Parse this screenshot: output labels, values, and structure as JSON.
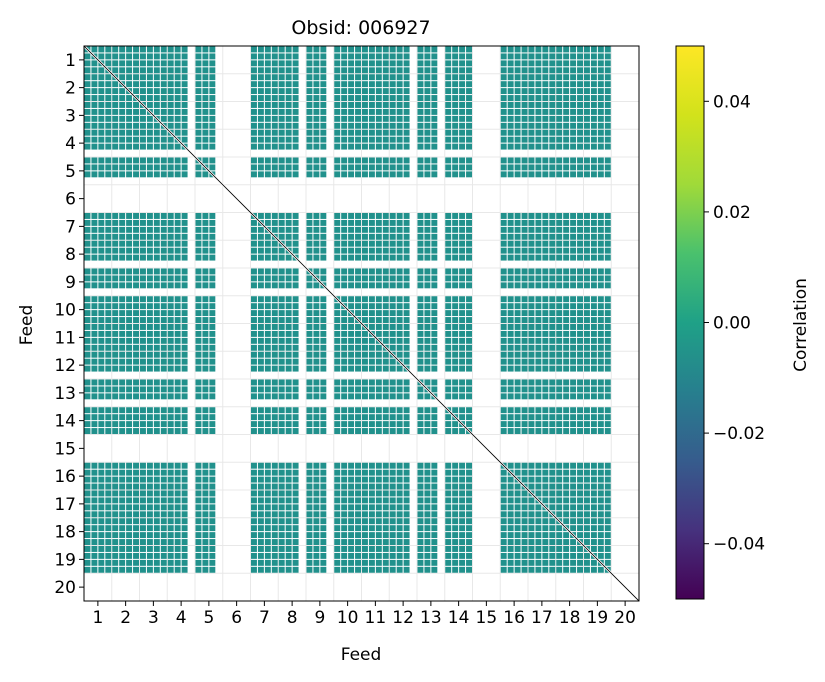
{
  "chart_data": {
    "type": "heatmap",
    "title": "Obsid: 006927",
    "xlabel": "Feed",
    "ylabel": "Feed",
    "x_ticks": [
      "1",
      "2",
      "3",
      "4",
      "5",
      "6",
      "7",
      "8",
      "9",
      "10",
      "11",
      "12",
      "13",
      "14",
      "15",
      "16",
      "17",
      "18",
      "19",
      "20"
    ],
    "y_ticks": [
      "1",
      "2",
      "3",
      "4",
      "5",
      "6",
      "7",
      "8",
      "9",
      "10",
      "11",
      "12",
      "13",
      "14",
      "15",
      "16",
      "17",
      "18",
      "19",
      "20"
    ],
    "feeds": [
      1,
      2,
      3,
      4,
      5,
      6,
      7,
      8,
      9,
      10,
      11,
      12,
      13,
      14,
      15,
      16,
      17,
      18,
      19,
      20
    ],
    "active_feeds": [
      1,
      2,
      3,
      4,
      5,
      7,
      8,
      9,
      10,
      11,
      12,
      13,
      14,
      16,
      17,
      18,
      19
    ],
    "masked_feeds": [
      6,
      15,
      20
    ],
    "partially_masked_feeds": [
      4,
      5,
      8,
      9,
      12,
      13
    ],
    "cell_value": 0.0,
    "colorbar": {
      "label": "Correlation",
      "range": [
        -0.05,
        0.05
      ],
      "ticks": [
        "0.04",
        "0.02",
        "0.00",
        "−0.02",
        "−0.04"
      ],
      "tick_values": [
        0.04,
        0.02,
        0.0,
        -0.02,
        -0.04
      ],
      "colormap": "viridis"
    },
    "colors": {
      "cell": "#21918c",
      "diagonal": "#000000",
      "grid": "#e8e8e8",
      "axis": "#000000"
    }
  }
}
